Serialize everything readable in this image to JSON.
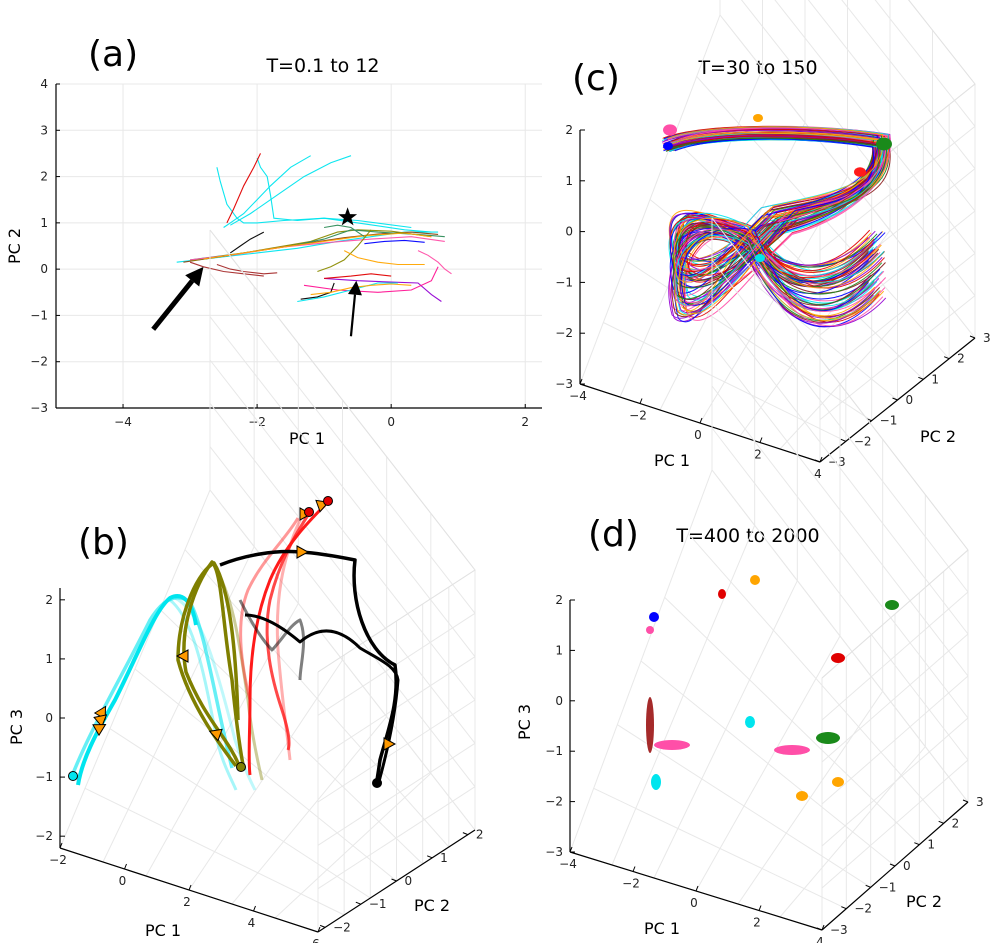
{
  "chart_data": [
    {
      "panel": "(a)",
      "type": "line",
      "title": "T=0.1 to 12",
      "xlabel": "PC 1",
      "ylabel": "PC 2",
      "xlim": [
        -5,
        2.25
      ],
      "ylim": [
        -3,
        4
      ],
      "xticks": [
        -4,
        -2,
        0,
        2
      ],
      "yticks": [
        -3,
        -2,
        -1,
        0,
        1,
        2,
        3,
        4
      ],
      "grid": true,
      "annotations": [
        {
          "kind": "star",
          "x": -0.65,
          "y": 1.12
        },
        {
          "kind": "arrow-large",
          "from": [
            -3.55,
            -1.3
          ],
          "to": [
            -2.8,
            0.05
          ]
        },
        {
          "kind": "arrow-small",
          "from": [
            -0.6,
            -1.45
          ],
          "to": [
            -0.52,
            -0.25
          ]
        }
      ],
      "series": [
        {
          "color": "#00e5ee",
          "x": [
            -2.6,
            -2.55,
            -2.45,
            -2.3,
            -2.2,
            -2.0,
            -1.6,
            -1.0,
            -0.5,
            0.2,
            0.6
          ],
          "y": [
            2.2,
            1.9,
            1.4,
            1.1,
            1.0,
            1.0,
            1.05,
            1.1,
            1.0,
            0.85,
            0.8
          ]
        },
        {
          "color": "#00e5ee",
          "x": [
            -2.0,
            -1.95,
            -1.85,
            -1.8,
            -1.75,
            -1.4,
            -1.0,
            -0.5,
            0.3
          ],
          "y": [
            2.4,
            2.2,
            2.0,
            1.6,
            1.1,
            1.05,
            1.1,
            1.05,
            0.9
          ]
        },
        {
          "color": "#00e5ee",
          "x": [
            -1.2,
            -1.5,
            -1.8,
            -2.0,
            -2.2,
            -2.4,
            -2.5
          ],
          "y": [
            2.45,
            2.2,
            1.8,
            1.5,
            1.2,
            1.0,
            0.9
          ]
        },
        {
          "color": "#00e5ee",
          "x": [
            -0.6,
            -0.9,
            -1.3,
            -1.7,
            -2.1,
            -2.4
          ],
          "y": [
            2.45,
            2.3,
            2.0,
            1.6,
            1.2,
            0.95
          ]
        },
        {
          "color": "#e00000",
          "x": [
            -1.95,
            -2.05,
            -2.2,
            -2.35,
            -2.45
          ],
          "y": [
            2.5,
            2.2,
            1.8,
            1.3,
            1.0
          ]
        },
        {
          "color": "#000000",
          "x": [
            -2.4,
            -2.25,
            -2.1,
            -1.9
          ],
          "y": [
            0.35,
            0.5,
            0.65,
            0.8
          ]
        },
        {
          "color": "#00e5ee",
          "x": [
            -3.2,
            -2.6,
            -2.0,
            -1.4,
            -0.8,
            -0.3,
            0.2,
            0.7
          ],
          "y": [
            0.15,
            0.25,
            0.35,
            0.45,
            0.6,
            0.7,
            0.8,
            0.8
          ]
        },
        {
          "color": "#8b4513",
          "x": [
            -3.1,
            -2.5,
            -1.9,
            -1.3,
            -0.7,
            -0.2,
            0.3,
            0.7
          ],
          "y": [
            0.15,
            0.28,
            0.42,
            0.55,
            0.68,
            0.76,
            0.8,
            0.75
          ]
        },
        {
          "color": "#8b8b00",
          "x": [
            -3.0,
            -2.4,
            -1.8,
            -1.2,
            -0.8,
            -0.5,
            0.0,
            0.6
          ],
          "y": [
            0.18,
            0.3,
            0.45,
            0.6,
            0.8,
            0.85,
            0.82,
            0.7
          ]
        },
        {
          "color": "#2e8b57",
          "x": [
            -3.0,
            -2.2,
            -1.5,
            -1.0,
            -0.6,
            -0.2,
            0.4,
            0.8
          ],
          "y": [
            0.2,
            0.35,
            0.5,
            0.65,
            0.85,
            0.8,
            0.75,
            0.7
          ]
        },
        {
          "color": "#ff4fa8",
          "x": [
            -3.0,
            -2.3,
            -1.6,
            -0.9,
            -0.3,
            0.3,
            0.8
          ],
          "y": [
            0.2,
            0.32,
            0.48,
            0.58,
            0.65,
            0.7,
            0.6
          ]
        },
        {
          "color": "#ffa500",
          "x": [
            -2.8,
            -2.2,
            -1.5,
            -0.9,
            -0.4,
            0.2,
            0.6
          ],
          "y": [
            0.22,
            0.35,
            0.5,
            0.62,
            0.72,
            0.78,
            0.7
          ]
        },
        {
          "color": "#a52a2a",
          "x": [
            -3.0,
            -2.8,
            -2.5,
            -2.2,
            -1.9
          ],
          "y": [
            0.15,
            0.05,
            -0.05,
            -0.1,
            -0.15
          ]
        },
        {
          "color": "#a52a2a",
          "x": [
            -2.6,
            -2.4,
            -2.2,
            -1.9,
            -1.7
          ],
          "y": [
            0.1,
            0.0,
            -0.05,
            -0.1,
            -0.08
          ]
        },
        {
          "color": "#9400d3",
          "x": [
            -1.0,
            -0.5,
            0.0,
            0.4,
            0.6,
            0.75
          ],
          "y": [
            -0.2,
            -0.25,
            -0.28,
            -0.3,
            -0.55,
            -0.7
          ]
        },
        {
          "color": "#ff1493",
          "x": [
            -1.3,
            -0.8,
            -0.2,
            0.3,
            0.6,
            0.7
          ],
          "y": [
            -0.35,
            -0.45,
            -0.5,
            -0.45,
            -0.25,
            0.05
          ]
        },
        {
          "color": "#000000",
          "x": [
            -1.35,
            -1.1,
            -0.9,
            -0.85
          ],
          "y": [
            -0.65,
            -0.6,
            -0.5,
            -0.3
          ]
        },
        {
          "color": "#00e5ee",
          "x": [
            -1.4,
            -1.0,
            -0.6,
            -0.2,
            0.1
          ],
          "y": [
            -0.7,
            -0.6,
            -0.45,
            -0.3,
            -0.3
          ]
        },
        {
          "color": "#ffa500",
          "x": [
            -1.2,
            -0.9,
            -0.6,
            -0.3,
            0.0,
            0.3
          ],
          "y": [
            -0.55,
            -0.5,
            -0.4,
            -0.35,
            -0.32,
            -0.35
          ]
        },
        {
          "color": "#e00000",
          "x": [
            -1.0,
            -0.6,
            -0.3,
            0.0
          ],
          "y": [
            -0.2,
            -0.15,
            -0.1,
            -0.15
          ]
        },
        {
          "color": "#8b8b00",
          "x": [
            -1.1,
            -0.9,
            -0.7,
            -0.5,
            -0.3
          ],
          "y": [
            -0.05,
            0.05,
            0.2,
            0.5,
            0.85
          ]
        },
        {
          "color": "#2e8b57",
          "x": [
            -1.0,
            -0.8,
            -0.6,
            -0.4
          ],
          "y": [
            0.9,
            0.95,
            0.9,
            0.7
          ]
        },
        {
          "color": "#ff4fa8",
          "x": [
            0.4,
            0.55,
            0.7,
            0.8,
            0.9
          ],
          "y": [
            0.4,
            0.3,
            0.15,
            0.0,
            -0.1
          ]
        },
        {
          "color": "#ffa500",
          "x": [
            -0.7,
            -0.5,
            -0.2,
            0.1,
            0.5
          ],
          "y": [
            0.4,
            0.25,
            0.15,
            0.1,
            0.1
          ]
        },
        {
          "color": "#0000ff",
          "x": [
            -0.4,
            -0.1,
            0.2,
            0.5
          ],
          "y": [
            0.55,
            0.6,
            0.62,
            0.58
          ]
        }
      ]
    },
    {
      "panel": "(b)",
      "type": "line",
      "title": "",
      "xlabel": "PC 1",
      "ylabel": "PC 3",
      "zlabel": "PC 2",
      "xticks": [
        -2,
        0,
        2,
        4,
        6
      ],
      "yticks": [
        -2,
        -1,
        0,
        1,
        2
      ],
      "zticks": [
        -1,
        0,
        1,
        2
      ],
      "grid": true,
      "trajectory_colors": [
        "#00e5ee",
        "#7f7f00",
        "#ff1a1a",
        "#000000"
      ],
      "marker_colors": {
        "start": "#e00000",
        "triangle": "#ff9900"
      }
    },
    {
      "panel": "(c)",
      "type": "line",
      "title": "T=30 to 150",
      "xlabel": "PC 1",
      "ylabel": "PC 2",
      "zlabel": "",
      "xticks": [
        -4,
        -2,
        0,
        2,
        4
      ],
      "yticks": [
        -3,
        -2,
        -1,
        0,
        1,
        2,
        3
      ],
      "zticks": [
        -3,
        -2,
        -1,
        0,
        1,
        2
      ],
      "grid": true,
      "trajectory_colors": [
        "#e00000",
        "#00e5ee",
        "#0000ff",
        "#1a8a1a",
        "#ff4fa8",
        "#ffa500",
        "#8b1a1a",
        "#9400d3"
      ]
    },
    {
      "panel": "(d)",
      "type": "scatter",
      "title": "T=400 to 2000",
      "xlabel": "PC 1",
      "ylabel": "PC 3",
      "zlabel": "PC 2",
      "xticks": [
        -4,
        -2,
        0,
        2,
        4
      ],
      "yticks": [
        -3,
        -2,
        -1,
        0,
        1,
        2,
        3
      ],
      "zticks": [
        -3,
        -2,
        -1,
        0,
        1,
        2
      ],
      "grid": true,
      "clusters": [
        {
          "color": "#ffa500"
        },
        {
          "color": "#e00000"
        },
        {
          "color": "#1a8a1a"
        },
        {
          "color": "#ff4fa8"
        },
        {
          "color": "#0000ff"
        },
        {
          "color": "#e00000"
        },
        {
          "color": "#00e5ee"
        },
        {
          "color": "#a52a2a"
        },
        {
          "color": "#ff4fa8"
        },
        {
          "color": "#00e5ee"
        },
        {
          "color": "#1a8a1a"
        },
        {
          "color": "#ff4fa8"
        },
        {
          "color": "#ffa500"
        },
        {
          "color": "#ffa500"
        }
      ]
    }
  ]
}
